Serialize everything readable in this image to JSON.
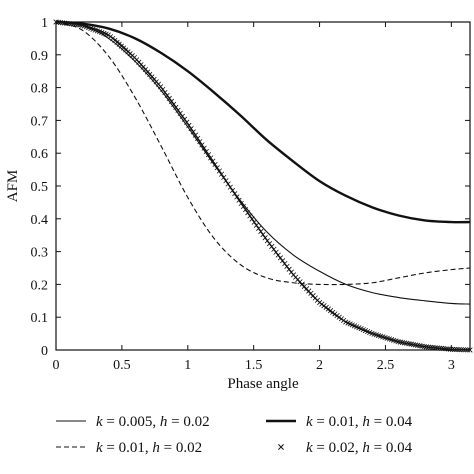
{
  "chart_data": {
    "type": "line",
    "title": "",
    "xlabel": "Phase angle",
    "ylabel": "AFM",
    "xlim": [
      0,
      3.14159
    ],
    "ylim": [
      0,
      1
    ],
    "xticks": [
      0,
      0.5,
      1,
      1.5,
      2,
      2.5,
      3
    ],
    "xtick_labels": [
      "0",
      "0.5",
      "1",
      "1.5",
      "2",
      "2.5",
      "3"
    ],
    "yticks": [
      0,
      0.1,
      0.2,
      0.3,
      0.4,
      0.5,
      0.6,
      0.7,
      0.8,
      0.9,
      1
    ],
    "ytick_labels": [
      "0",
      "0.1",
      "0.2",
      "0.3",
      "0.4",
      "0.5",
      "0.6",
      "0.7",
      "0.8",
      "0.9",
      "1"
    ],
    "grid": false,
    "legend_position": "below",
    "series": [
      {
        "name_k": "k",
        "name_k_value": " = 0.005, ",
        "name_h": "h",
        "name_h_value": " = 0.02",
        "style": "thin-solid",
        "x": [
          0,
          0.2,
          0.4,
          0.6,
          0.8,
          1.0,
          1.2,
          1.4,
          1.6,
          1.8,
          2.0,
          2.2,
          2.4,
          2.6,
          2.8,
          3.0,
          3.14
        ],
        "y": [
          1.0,
          0.99,
          0.95,
          0.88,
          0.79,
          0.68,
          0.565,
          0.455,
          0.36,
          0.29,
          0.24,
          0.2,
          0.175,
          0.16,
          0.15,
          0.142,
          0.14
        ]
      },
      {
        "name_k": "k",
        "name_k_value": " = 0.01, ",
        "name_h": "h",
        "name_h_value": " = 0.02",
        "style": "dashed",
        "x": [
          0,
          0.2,
          0.4,
          0.6,
          0.8,
          1.0,
          1.2,
          1.4,
          1.6,
          1.8,
          2.0,
          2.2,
          2.4,
          2.6,
          2.8,
          3.0,
          3.14
        ],
        "y": [
          1.0,
          0.975,
          0.895,
          0.77,
          0.62,
          0.465,
          0.34,
          0.26,
          0.22,
          0.205,
          0.2,
          0.2,
          0.205,
          0.22,
          0.235,
          0.245,
          0.25
        ]
      },
      {
        "name_k": "k",
        "name_k_value": " = 0.01, ",
        "name_h": "h",
        "name_h_value": " = 0.04",
        "style": "thick-solid",
        "x": [
          0,
          0.2,
          0.4,
          0.6,
          0.8,
          1.0,
          1.2,
          1.4,
          1.6,
          1.8,
          2.0,
          2.2,
          2.4,
          2.6,
          2.8,
          3.0,
          3.14
        ],
        "y": [
          1.0,
          0.995,
          0.98,
          0.95,
          0.905,
          0.85,
          0.785,
          0.715,
          0.64,
          0.575,
          0.515,
          0.47,
          0.435,
          0.41,
          0.395,
          0.39,
          0.39
        ]
      },
      {
        "name_k": "k",
        "name_k_value": " = 0.02, ",
        "name_h": "h",
        "name_h_value": " = 0.04",
        "style": "x-markers",
        "x": [
          0,
          0.2,
          0.4,
          0.6,
          0.8,
          1.0,
          1.2,
          1.4,
          1.6,
          1.8,
          2.0,
          2.2,
          2.4,
          2.6,
          2.8,
          3.0,
          3.14
        ],
        "y": [
          1.0,
          0.99,
          0.96,
          0.89,
          0.8,
          0.69,
          0.57,
          0.45,
          0.335,
          0.23,
          0.145,
          0.085,
          0.05,
          0.025,
          0.01,
          0.002,
          0.0
        ]
      }
    ]
  }
}
